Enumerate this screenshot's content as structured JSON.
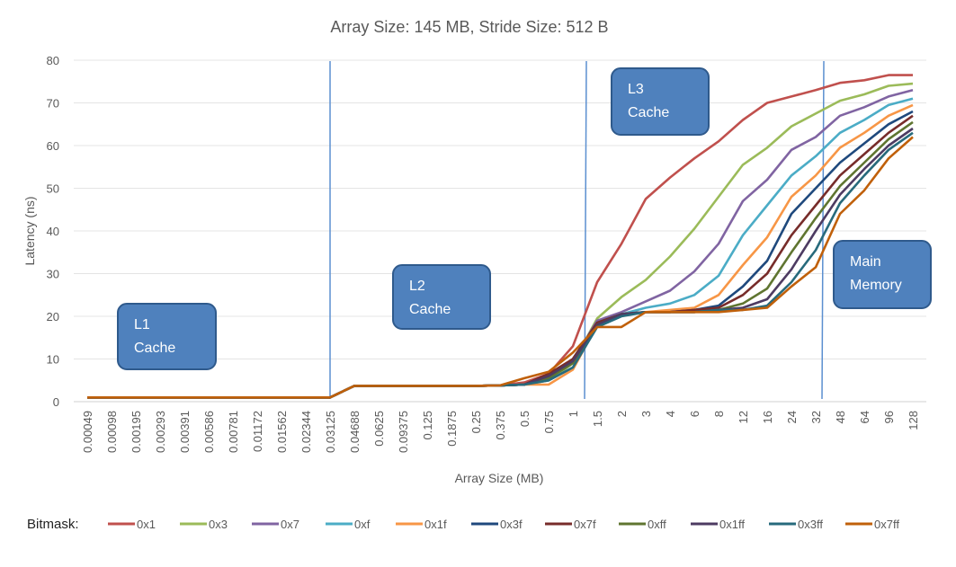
{
  "chart_data": {
    "type": "line",
    "title": "Array Size: 145 MB, Stride Size: 512 B",
    "xlabel": "Array Size (MB)",
    "ylabel": "Latency (ns)",
    "ylim": [
      0,
      80
    ],
    "yticks": [
      "0",
      "10",
      "20",
      "30",
      "40",
      "50",
      "60",
      "70",
      "80"
    ],
    "grid": true,
    "legend_title": "Bitmask:",
    "legend_position": "bottom",
    "categories": [
      "0.00049",
      "0.00098",
      "0.00195",
      "0.00293",
      "0.00391",
      "0.00586",
      "0.00781",
      "0.01172",
      "0.01562",
      "0.02344",
      "0.03125",
      "0.04688",
      "0.0625",
      "0.09375",
      "0.125",
      "0.1875",
      "0.25",
      "0.375",
      "0.5",
      "0.75",
      "1",
      "1.5",
      "2",
      "3",
      "4",
      "6",
      "8",
      "12",
      "16",
      "24",
      "32",
      "48",
      "64",
      "96",
      "128"
    ],
    "series": [
      {
        "name": "0x1",
        "color": "#c0504d",
        "values": [
          1,
          1,
          1,
          1,
          1,
          1,
          1,
          1,
          1,
          1,
          1,
          3.7,
          3.7,
          3.7,
          3.7,
          3.7,
          3.7,
          3.8,
          4.5,
          6.5,
          13,
          28,
          37,
          47.5,
          52.5,
          57,
          61,
          66,
          70,
          71.5,
          73,
          74.7,
          75.3,
          76.5,
          76.5
        ]
      },
      {
        "name": "0x3",
        "color": "#9bbb59",
        "values": [
          1,
          1,
          1,
          1,
          1,
          1,
          1,
          1,
          1,
          1,
          1,
          3.7,
          3.7,
          3.7,
          3.7,
          3.7,
          3.7,
          3.8,
          4,
          5,
          9,
          19.5,
          24.5,
          28.5,
          34,
          40.5,
          48,
          55.5,
          59.5,
          64.5,
          67.5,
          70.5,
          72,
          74,
          74.5
        ]
      },
      {
        "name": "0x7",
        "color": "#8064a2",
        "values": [
          1,
          1,
          1,
          1,
          1,
          1,
          1,
          1,
          1,
          1,
          1,
          3.7,
          3.7,
          3.7,
          3.7,
          3.7,
          3.7,
          3.8,
          4,
          5.5,
          9.5,
          19,
          21,
          23.5,
          26,
          30.5,
          37,
          47,
          52,
          59,
          62,
          67,
          69,
          71.5,
          73
        ]
      },
      {
        "name": "0xf",
        "color": "#4bacc6",
        "values": [
          1,
          1,
          1,
          1,
          1,
          1,
          1,
          1,
          1,
          1,
          1,
          3.7,
          3.7,
          3.7,
          3.7,
          3.7,
          3.7,
          3.8,
          4,
          5,
          8,
          18.5,
          20.5,
          22,
          23,
          25,
          29.5,
          39,
          46,
          53,
          57.5,
          63,
          66,
          69.5,
          71
        ]
      },
      {
        "name": "0x1f",
        "color": "#f79646",
        "values": [
          1,
          1,
          1,
          1,
          1,
          1,
          1,
          1,
          1,
          1,
          1,
          3.7,
          3.7,
          3.7,
          3.7,
          3.7,
          3.7,
          3.8,
          4,
          4,
          7.5,
          18,
          20.5,
          21,
          21.5,
          22,
          25,
          32,
          38.5,
          48,
          53,
          59.5,
          63,
          67,
          69.5
        ]
      },
      {
        "name": "0x3f",
        "color": "#1f497d",
        "values": [
          1,
          1,
          1,
          1,
          1,
          1,
          1,
          1,
          1,
          1,
          1,
          3.7,
          3.7,
          3.7,
          3.7,
          3.7,
          3.7,
          3.8,
          4,
          6,
          10,
          18.5,
          20.5,
          21,
          21,
          21.5,
          22.5,
          27,
          33,
          44,
          50,
          56,
          60.5,
          65,
          68
        ]
      },
      {
        "name": "0x7f",
        "color": "#772c2a",
        "values": [
          1,
          1,
          1,
          1,
          1,
          1,
          1,
          1,
          1,
          1,
          1,
          3.7,
          3.7,
          3.7,
          3.7,
          3.7,
          3.7,
          3.8,
          4,
          6.5,
          10,
          18.5,
          20.5,
          21,
          21,
          21.5,
          22,
          25,
          30,
          39,
          46,
          53,
          58,
          63,
          67
        ]
      },
      {
        "name": "0xff",
        "color": "#5f7530",
        "values": [
          1,
          1,
          1,
          1,
          1,
          1,
          1,
          1,
          1,
          1,
          1,
          3.7,
          3.7,
          3.7,
          3.7,
          3.7,
          3.7,
          3.8,
          4,
          5.5,
          9,
          18,
          20.5,
          21,
          21,
          21,
          21.5,
          23,
          26.5,
          35,
          43,
          50.5,
          56,
          61.5,
          65.5
        ]
      },
      {
        "name": "0x1ff",
        "color": "#4d3b62",
        "values": [
          1,
          1,
          1,
          1,
          1,
          1,
          1,
          1,
          1,
          1,
          1,
          3.7,
          3.7,
          3.7,
          3.7,
          3.7,
          3.7,
          3.8,
          4,
          6,
          9.5,
          18,
          20.5,
          21,
          21,
          21,
          21.5,
          22,
          24,
          31,
          40,
          48.5,
          54.5,
          60,
          64
        ]
      },
      {
        "name": "0x3ff",
        "color": "#276a7c",
        "values": [
          1,
          1,
          1,
          1,
          1,
          1,
          1,
          1,
          1,
          1,
          1,
          3.7,
          3.7,
          3.7,
          3.7,
          3.7,
          3.7,
          3.8,
          4,
          5,
          8,
          17.5,
          20,
          21,
          21,
          21,
          21.5,
          21.5,
          22.5,
          28,
          35.5,
          46.5,
          53,
          59,
          63
        ]
      },
      {
        "name": "0x7ff",
        "color": "#c0600a",
        "values": [
          1,
          1,
          1,
          1,
          1,
          1,
          1,
          1,
          1,
          1,
          1,
          3.7,
          3.7,
          3.7,
          3.7,
          3.7,
          3.7,
          3.8,
          5.5,
          7,
          11.5,
          17.5,
          17.5,
          21,
          21,
          21,
          21,
          21.5,
          22,
          27,
          31.5,
          44,
          49.5,
          57,
          62
        ]
      }
    ],
    "annotations": [
      {
        "line1": "L1",
        "line2": "Cache"
      },
      {
        "line1": "L2",
        "line2": "Cache"
      },
      {
        "line1": "L3",
        "line2": "Cache"
      },
      {
        "line1": "Main",
        "line2": "Memory"
      }
    ],
    "boundary_lines_between": [
      [
        "0.02344",
        "0.03125"
      ],
      [
        "1",
        "1.5"
      ],
      [
        "32",
        "48"
      ]
    ],
    "annotation_color": "#4f81bd",
    "boundary_color": "#5b8fd0"
  }
}
